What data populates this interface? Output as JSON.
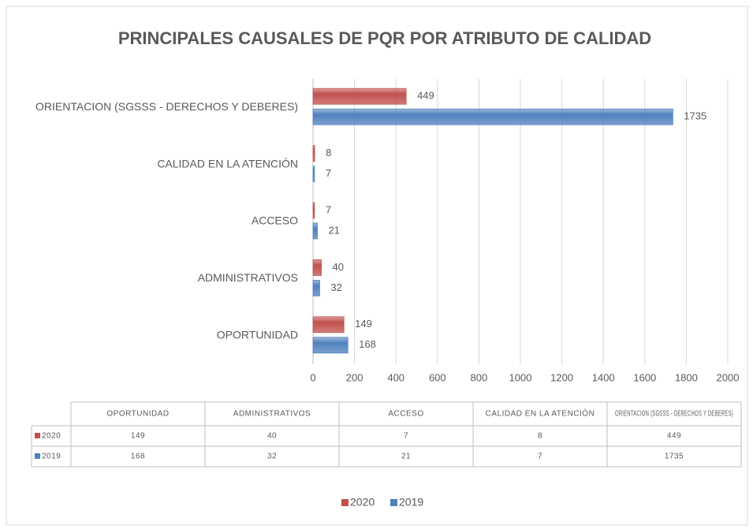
{
  "chart_data": {
    "type": "bar",
    "orientation": "horizontal",
    "title": "PRINCIPALES CAUSALES DE PQR POR ATRIBUTO DE CALIDAD",
    "categories": [
      "OPORTUNIDAD",
      "ADMINISTRATIVOS",
      "ACCESO",
      "CALIDAD EN LA ATENCIÒN",
      "ORIENTACION (SGSSS - DERECHOS Y DEBERES)"
    ],
    "series": [
      {
        "name": "2020",
        "color": "#c0504d",
        "values": [
          149,
          40,
          7,
          8,
          449
        ]
      },
      {
        "name": "2019",
        "color": "#4f81bd",
        "values": [
          168,
          32,
          21,
          7,
          1735
        ]
      }
    ],
    "xlim": [
      0,
      2000
    ],
    "xticks": [
      0,
      200,
      400,
      600,
      800,
      1000,
      1200,
      1400,
      1600,
      1800,
      2000
    ],
    "grid": true,
    "legend": "bottom",
    "data_table": true
  }
}
